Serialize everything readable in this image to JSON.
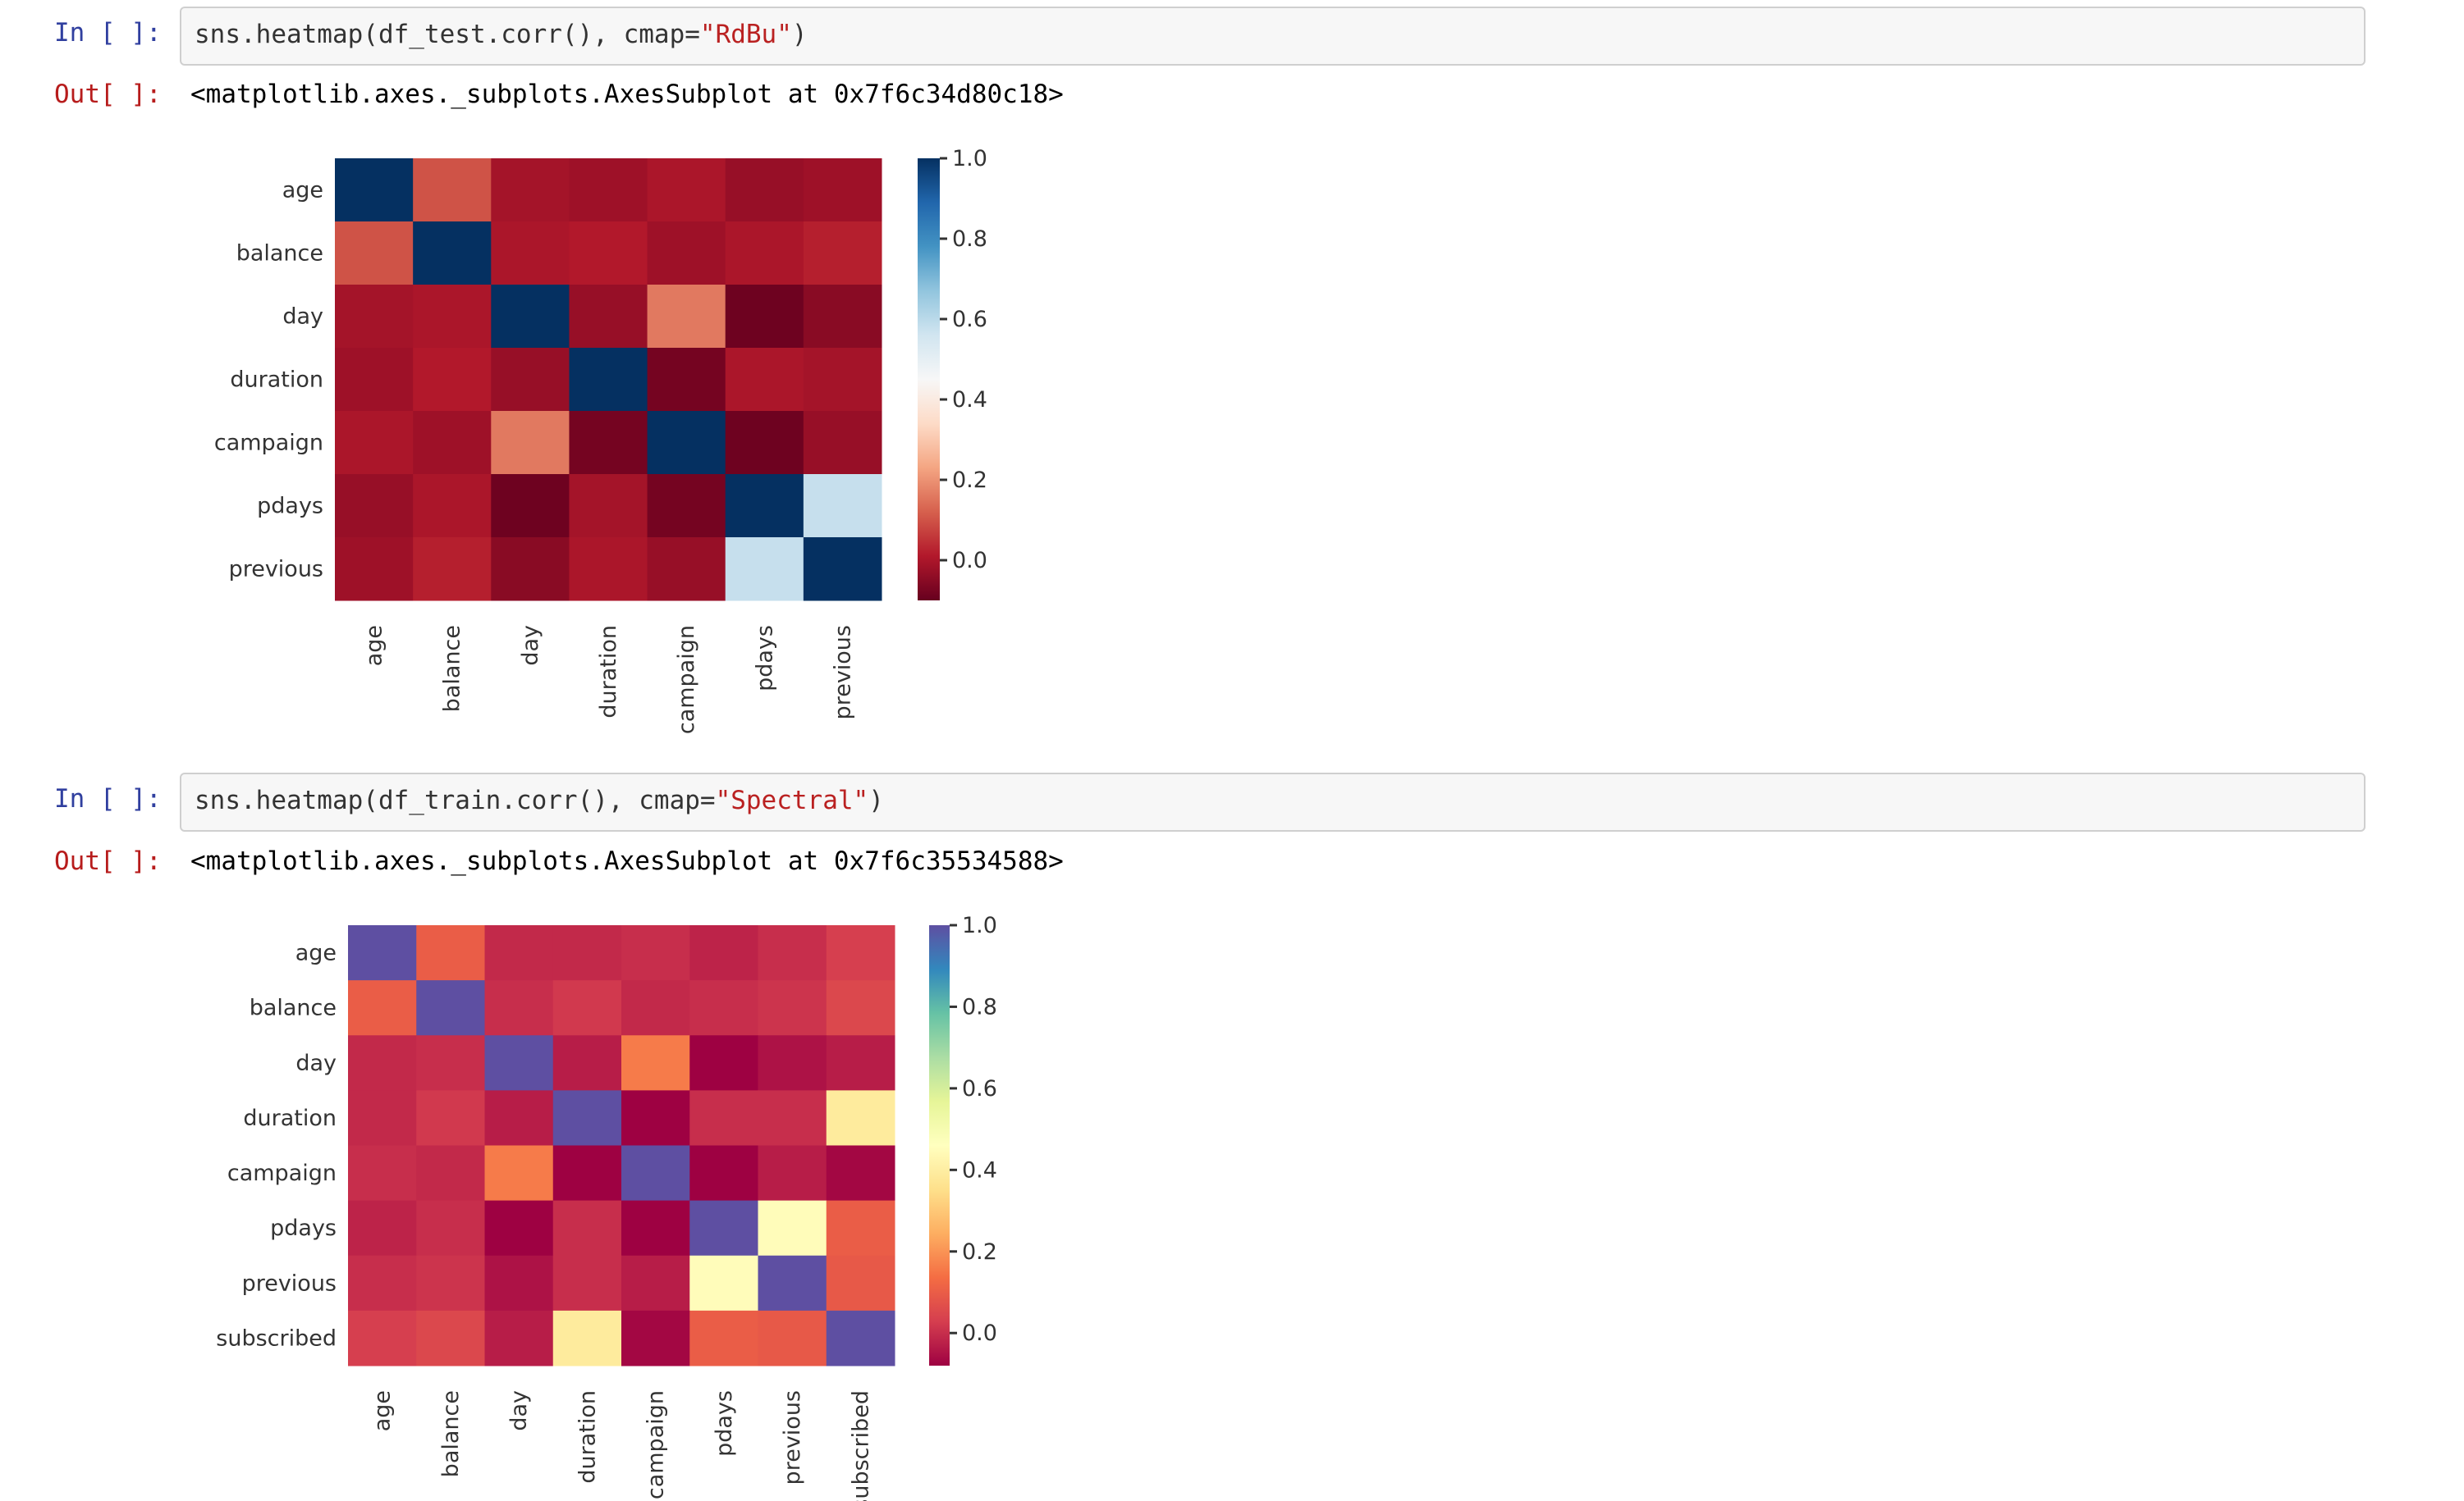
{
  "cells": [
    {
      "in_prompt": "In [ ]:",
      "code_prefix": "sns.heatmap(df_test.corr(), cmap=",
      "code_string": "\"RdBu\"",
      "code_suffix": ")",
      "out_prompt": "Out[ ]:",
      "output": "<matplotlib.axes._subplots.AxesSubplot at 0x7f6c34d80c18>"
    },
    {
      "in_prompt": "In [ ]:",
      "code_prefix": "sns.heatmap(df_train.corr(), cmap=",
      "code_string": "\"Spectral\"",
      "code_suffix": ")",
      "out_prompt": "Out[ ]:",
      "output": "<matplotlib.axes._subplots.AxesSubplot at 0x7f6c35534588>"
    }
  ],
  "chart_data": [
    {
      "type": "heatmap",
      "cmap": "RdBu",
      "colormap_stops": [
        "#67001f",
        "#b2182b",
        "#d6604d",
        "#f4a582",
        "#fddbc7",
        "#f7f7f7",
        "#d1e5f0",
        "#92c5de",
        "#4393c3",
        "#2166ac",
        "#053061"
      ],
      "vmin": -0.1,
      "vmax": 1.0,
      "colorbar_ticks": [
        "0.0",
        "0.2",
        "0.4",
        "0.6",
        "0.8",
        "1.0"
      ],
      "colorbar_tick_values": [
        0.0,
        0.2,
        0.4,
        0.6,
        0.8,
        1.0
      ],
      "rows": [
        "age",
        "balance",
        "day",
        "duration",
        "campaign",
        "pdays",
        "previous"
      ],
      "columns": [
        "age",
        "balance",
        "day",
        "duration",
        "campaign",
        "pdays",
        "previous"
      ],
      "values": [
        [
          1.0,
          0.1,
          -0.01,
          -0.02,
          0.0,
          -0.03,
          -0.02
        ],
        [
          0.1,
          1.0,
          0.0,
          0.01,
          -0.02,
          0.0,
          0.02
        ],
        [
          -0.01,
          0.0,
          1.0,
          -0.03,
          0.16,
          -0.09,
          -0.05
        ],
        [
          -0.02,
          0.01,
          -0.03,
          1.0,
          -0.08,
          0.0,
          -0.01
        ],
        [
          0.0,
          -0.02,
          0.16,
          -0.08,
          1.0,
          -0.09,
          -0.03
        ],
        [
          -0.03,
          0.0,
          -0.09,
          -0.01,
          -0.08,
          1.0,
          0.58
        ],
        [
          -0.02,
          0.02,
          -0.05,
          0.0,
          -0.03,
          0.58,
          1.0
        ]
      ]
    },
    {
      "type": "heatmap",
      "cmap": "Spectral",
      "colormap_stops": [
        "#9e0142",
        "#d53e4f",
        "#f46d43",
        "#fdae61",
        "#fee08b",
        "#ffffbf",
        "#e6f598",
        "#abdda4",
        "#66c2a5",
        "#3288bd",
        "#5e4fa2"
      ],
      "vmin": -0.08,
      "vmax": 1.0,
      "colorbar_ticks": [
        "0.0",
        "0.2",
        "0.4",
        "0.6",
        "0.8",
        "1.0"
      ],
      "colorbar_tick_values": [
        0.0,
        0.2,
        0.4,
        0.6,
        0.8,
        1.0
      ],
      "rows": [
        "age",
        "balance",
        "day",
        "duration",
        "campaign",
        "pdays",
        "previous",
        "subscribed"
      ],
      "columns": [
        "age",
        "balance",
        "day",
        "duration",
        "campaign",
        "pdays",
        "previous",
        "subscribed"
      ],
      "values": [
        [
          1.0,
          0.1,
          -0.01,
          -0.01,
          0.0,
          -0.02,
          0.0,
          0.03
        ],
        [
          0.1,
          1.0,
          0.0,
          0.02,
          -0.01,
          0.0,
          0.01,
          0.05
        ],
        [
          -0.01,
          0.0,
          1.0,
          -0.03,
          0.16,
          -0.08,
          -0.05,
          -0.03
        ],
        [
          -0.01,
          0.02,
          -0.03,
          1.0,
          -0.08,
          0.0,
          0.0,
          0.39
        ],
        [
          0.0,
          -0.01,
          0.16,
          -0.08,
          1.0,
          -0.09,
          -0.03,
          -0.07
        ],
        [
          -0.02,
          0.0,
          -0.08,
          0.0,
          -0.09,
          1.0,
          0.45,
          0.1
        ],
        [
          0.0,
          0.01,
          -0.05,
          0.0,
          -0.03,
          0.45,
          1.0,
          0.09
        ],
        [
          0.03,
          0.05,
          -0.03,
          0.39,
          -0.07,
          0.1,
          0.09,
          1.0
        ]
      ]
    }
  ]
}
